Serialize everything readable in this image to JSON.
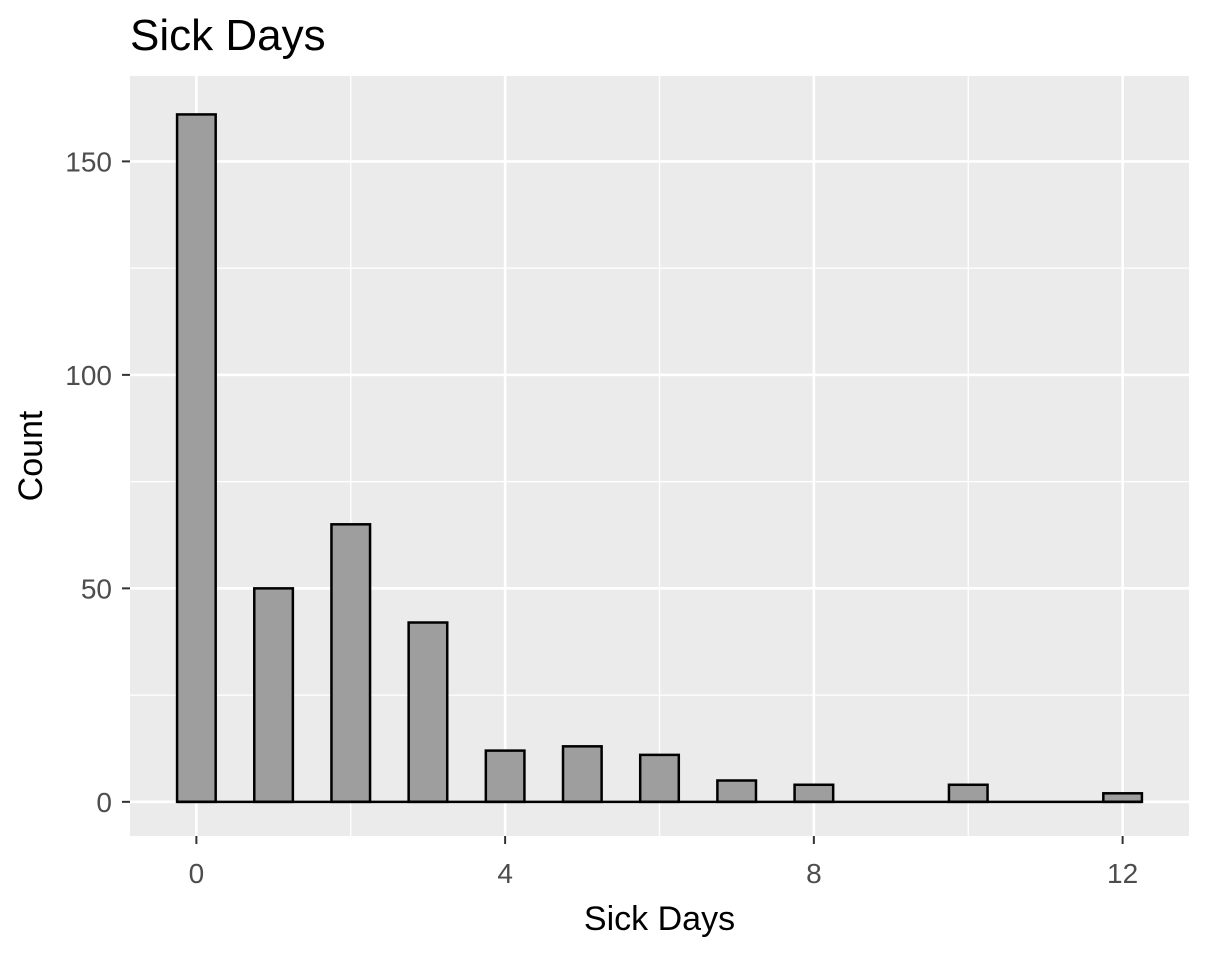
{
  "chart_data": {
    "type": "bar",
    "title": "Sick Days",
    "xlabel": "Sick Days",
    "ylabel": "Count",
    "x": [
      0,
      1,
      2,
      3,
      4,
      5,
      6,
      7,
      8,
      9,
      10,
      11,
      12
    ],
    "values": [
      161,
      50,
      65,
      42,
      12,
      13,
      11,
      5,
      4,
      0,
      4,
      0,
      2
    ],
    "xlim": [
      -0.86,
      12.86
    ],
    "ylim": [
      -8,
      170
    ],
    "x_ticks": [
      0,
      4,
      8,
      12
    ],
    "x_tick_labels": [
      "0",
      "4",
      "8",
      "12"
    ],
    "y_ticks": [
      0,
      50,
      100,
      150
    ],
    "y_tick_labels": [
      "0",
      "50",
      "100",
      "150"
    ],
    "bar_fill": "#9e9e9e",
    "bar_outline": "#000000",
    "panel_background": "#ebebeb",
    "grid": true,
    "legend": "none"
  }
}
